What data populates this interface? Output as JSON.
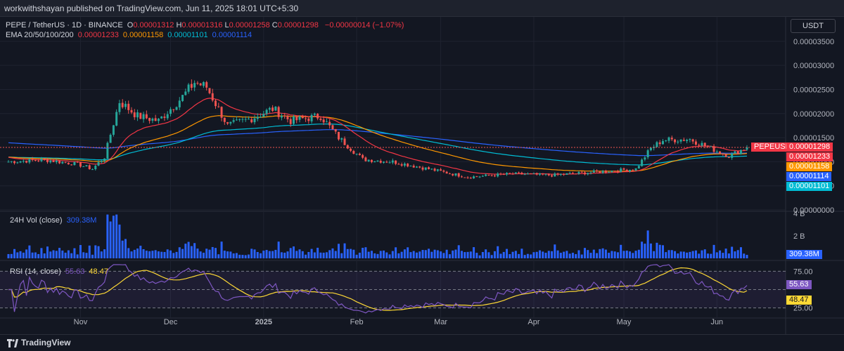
{
  "header": {
    "published": "workwithshayan published on TradingView.com, Jun 11, 2025 18:01 UTC+5:30"
  },
  "footer": {
    "brand": "TradingView"
  },
  "currency_button": "USDT",
  "legend": {
    "symbol": "PEPE / TetherUS · 1D · BINANCE",
    "ohlc": [
      {
        "label": "O",
        "value": "0.00001312"
      },
      {
        "label": "H",
        "value": "0.00001316"
      },
      {
        "label": "L",
        "value": "0.00001258"
      },
      {
        "label": "C",
        "value": "0.00001298"
      }
    ],
    "change": "−0.00000014 (−1.07%)",
    "ema_title": "EMA 20/50/100/200",
    "ema_values": [
      "0.00001233",
      "0.00001158",
      "0.00001101",
      "0.00001114"
    ],
    "vol_title": "24H Vol (close)",
    "vol_value": "309.38M",
    "rsi_title": "RSI (14, close)",
    "rsi_value": "55.63",
    "rsi_ma_value": "48.47"
  },
  "colors": {
    "bg": "#131722",
    "up": "#26a69a",
    "down": "#ef5350",
    "ema20": "#f23645",
    "ema50": "#ff9800",
    "ema100": "#00bcd4",
    "ema200": "#2962ff",
    "vol": "#2962ff",
    "rsi": "#7e57c2",
    "rsi_ma": "#fdd835",
    "rsi_band": "#7e57c2"
  },
  "price_axis": {
    "ticks": [
      "0.00003500",
      "0.00003000",
      "0.00002500",
      "0.00002000",
      "0.00001500",
      "0.00001000",
      "0.00000500",
      "0.00000000"
    ],
    "tags": [
      {
        "label": "PEPEUSDT",
        "value": "0.00001298",
        "color": "#f23645"
      },
      {
        "label": "",
        "value": "0.00001233",
        "color": "#f23645"
      },
      {
        "label": "",
        "value": "0.00001158",
        "color": "#ff9800"
      },
      {
        "label": "",
        "value": "0.00001114",
        "color": "#2962ff"
      },
      {
        "label": "",
        "value": "0.00001101",
        "color": "#00bcd4"
      }
    ]
  },
  "vol_axis": {
    "ticks": [
      "4 B",
      "2 B"
    ],
    "tag": "309.38M"
  },
  "rsi_axis": {
    "ticks": [
      "75.00",
      "25.00"
    ],
    "tags": [
      "55.63",
      "48.47"
    ]
  },
  "time_axis": [
    "Nov",
    "Dec",
    "2025",
    "Feb",
    "Mar",
    "Apr",
    "May",
    "Jun"
  ],
  "chart_data": {
    "type": "candlestick",
    "title": "PEPE / TetherUS · 1D · BINANCE",
    "x_range": [
      "2024-10-08",
      "2025-06-11"
    ],
    "y_unit": "USDT",
    "ylim": [
      0,
      3.6e-05
    ],
    "price_anchors": [
      {
        "date": "2024-10-08",
        "close": 1e-05
      },
      {
        "date": "2024-10-20",
        "close": 1.04e-05
      },
      {
        "date": "2024-10-31",
        "close": 9.5e-06
      },
      {
        "date": "2024-11-05",
        "close": 8.5e-06
      },
      {
        "date": "2024-11-09",
        "close": 1.1e-05
      },
      {
        "date": "2024-11-12",
        "close": 1.8e-05
      },
      {
        "date": "2024-11-14",
        "close": 2.25e-05
      },
      {
        "date": "2024-11-20",
        "close": 1.95e-05
      },
      {
        "date": "2024-11-27",
        "close": 1.85e-05
      },
      {
        "date": "2024-12-05",
        "close": 2.35e-05
      },
      {
        "date": "2024-12-09",
        "close": 2.65e-05
      },
      {
        "date": "2024-12-13",
        "close": 2.55e-05
      },
      {
        "date": "2024-12-20",
        "close": 1.75e-05
      },
      {
        "date": "2024-12-28",
        "close": 1.9e-05
      },
      {
        "date": "2025-01-04",
        "close": 2.1e-05
      },
      {
        "date": "2025-01-10",
        "close": 1.85e-05
      },
      {
        "date": "2025-01-20",
        "close": 1.95e-05
      },
      {
        "date": "2025-01-26",
        "close": 1.5e-05
      },
      {
        "date": "2025-02-03",
        "close": 1.05e-05
      },
      {
        "date": "2025-02-13",
        "close": 1e-05
      },
      {
        "date": "2025-02-25",
        "close": 8.5e-06
      },
      {
        "date": "2025-03-10",
        "close": 6.8e-06
      },
      {
        "date": "2025-03-25",
        "close": 7.5e-06
      },
      {
        "date": "2025-04-07",
        "close": 7.2e-06
      },
      {
        "date": "2025-04-20",
        "close": 7.8e-06
      },
      {
        "date": "2025-05-05",
        "close": 8.5e-06
      },
      {
        "date": "2025-05-10",
        "close": 1.28e-05
      },
      {
        "date": "2025-05-14",
        "close": 1.45e-05
      },
      {
        "date": "2025-05-23",
        "close": 1.47e-05
      },
      {
        "date": "2025-05-31",
        "close": 1.25e-05
      },
      {
        "date": "2025-06-05",
        "close": 1.12e-05
      },
      {
        "date": "2025-06-11",
        "close": 1.3e-05
      }
    ],
    "ema_series": [
      {
        "name": "EMA 20",
        "last": 1.233e-05
      },
      {
        "name": "EMA 50",
        "last": 1.158e-05
      },
      {
        "name": "EMA 100",
        "last": 1.101e-05
      },
      {
        "name": "EMA 200",
        "last": 1.114e-05
      }
    ],
    "volume": {
      "name": "24H Vol (close)",
      "unit": "USDT",
      "ylim": [
        0,
        4000000000
      ],
      "last": 309380000
    },
    "rsi": {
      "name": "RSI (14, close)",
      "ylim": [
        15,
        85
      ],
      "band": [
        25,
        75
      ],
      "last": 55.63,
      "ma_last": 48.47
    }
  }
}
